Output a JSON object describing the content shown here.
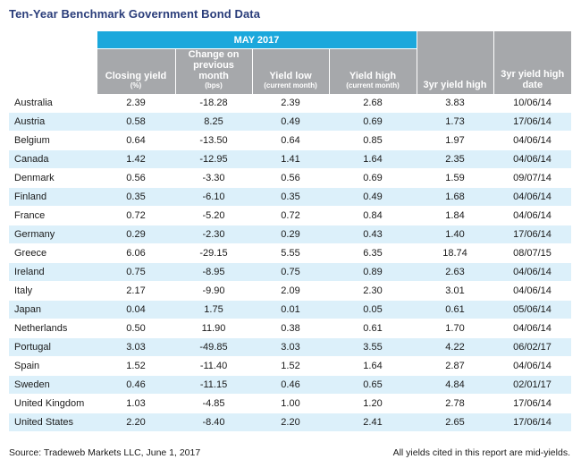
{
  "title": "Ten-Year Benchmark Government Bond Data",
  "period_label": "MAY 2017",
  "headers": {
    "closing_yield": "Closing yield",
    "closing_yield_sub": "(%)",
    "change": "Change on previous month",
    "change_sub": "(bps)",
    "yield_low": "Yield low",
    "yield_low_sub": "(current month)",
    "yield_high": "Yield high",
    "yield_high_sub": "(current month)",
    "three_yr_high": "3yr yield high",
    "three_yr_high_date": "3yr yield high date"
  },
  "rows": [
    {
      "country": "Australia",
      "closing": "2.39",
      "change": "-18.28",
      "low": "2.39",
      "high": "2.68",
      "yr3_high": "3.83",
      "yr3_date": "10/06/14"
    },
    {
      "country": "Austria",
      "closing": "0.58",
      "change": "8.25",
      "low": "0.49",
      "high": "0.69",
      "yr3_high": "1.73",
      "yr3_date": "17/06/14"
    },
    {
      "country": "Belgium",
      "closing": "0.64",
      "change": "-13.50",
      "low": "0.64",
      "high": "0.85",
      "yr3_high": "1.97",
      "yr3_date": "04/06/14"
    },
    {
      "country": "Canada",
      "closing": "1.42",
      "change": "-12.95",
      "low": "1.41",
      "high": "1.64",
      "yr3_high": "2.35",
      "yr3_date": "04/06/14"
    },
    {
      "country": "Denmark",
      "closing": "0.56",
      "change": "-3.30",
      "low": "0.56",
      "high": "0.69",
      "yr3_high": "1.59",
      "yr3_date": "09/07/14"
    },
    {
      "country": "Finland",
      "closing": "0.35",
      "change": "-6.10",
      "low": "0.35",
      "high": "0.49",
      "yr3_high": "1.68",
      "yr3_date": "04/06/14"
    },
    {
      "country": "France",
      "closing": "0.72",
      "change": "-5.20",
      "low": "0.72",
      "high": "0.84",
      "yr3_high": "1.84",
      "yr3_date": "04/06/14"
    },
    {
      "country": "Germany",
      "closing": "0.29",
      "change": "-2.30",
      "low": "0.29",
      "high": "0.43",
      "yr3_high": "1.40",
      "yr3_date": "17/06/14"
    },
    {
      "country": "Greece",
      "closing": "6.06",
      "change": "-29.15",
      "low": "5.55",
      "high": "6.35",
      "yr3_high": "18.74",
      "yr3_date": "08/07/15"
    },
    {
      "country": "Ireland",
      "closing": "0.75",
      "change": "-8.95",
      "low": "0.75",
      "high": "0.89",
      "yr3_high": "2.63",
      "yr3_date": "04/06/14"
    },
    {
      "country": "Italy",
      "closing": "2.17",
      "change": "-9.90",
      "low": "2.09",
      "high": "2.30",
      "yr3_high": "3.01",
      "yr3_date": "04/06/14"
    },
    {
      "country": "Japan",
      "closing": "0.04",
      "change": "1.75",
      "low": "0.01",
      "high": "0.05",
      "yr3_high": "0.61",
      "yr3_date": "05/06/14"
    },
    {
      "country": "Netherlands",
      "closing": "0.50",
      "change": "11.90",
      "low": "0.38",
      "high": "0.61",
      "yr3_high": "1.70",
      "yr3_date": "04/06/14"
    },
    {
      "country": "Portugal",
      "closing": "3.03",
      "change": "-49.85",
      "low": "3.03",
      "high": "3.55",
      "yr3_high": "4.22",
      "yr3_date": "06/02/17"
    },
    {
      "country": "Spain",
      "closing": "1.52",
      "change": "-11.40",
      "low": "1.52",
      "high": "1.64",
      "yr3_high": "2.87",
      "yr3_date": "04/06/14"
    },
    {
      "country": "Sweden",
      "closing": "0.46",
      "change": "-11.15",
      "low": "0.46",
      "high": "0.65",
      "yr3_high": "4.84",
      "yr3_date": "02/01/17"
    },
    {
      "country": "United Kingdom",
      "closing": "1.03",
      "change": "-4.85",
      "low": "1.00",
      "high": "1.20",
      "yr3_high": "2.78",
      "yr3_date": "17/06/14"
    },
    {
      "country": "United States",
      "closing": "2.20",
      "change": "-8.40",
      "low": "2.20",
      "high": "2.41",
      "yr3_high": "2.65",
      "yr3_date": "17/06/14"
    }
  ],
  "footer": {
    "source": "Source: Tradeweb Markets LLC, June 1, 2017",
    "note": "All yields cited in this report are mid-yields."
  },
  "colors": {
    "title": "#2a3d7a",
    "month_header_bg": "#1ba8dc",
    "column_header_bg": "#a6a8ab",
    "stripe_row_bg": "#dcf0fa"
  }
}
